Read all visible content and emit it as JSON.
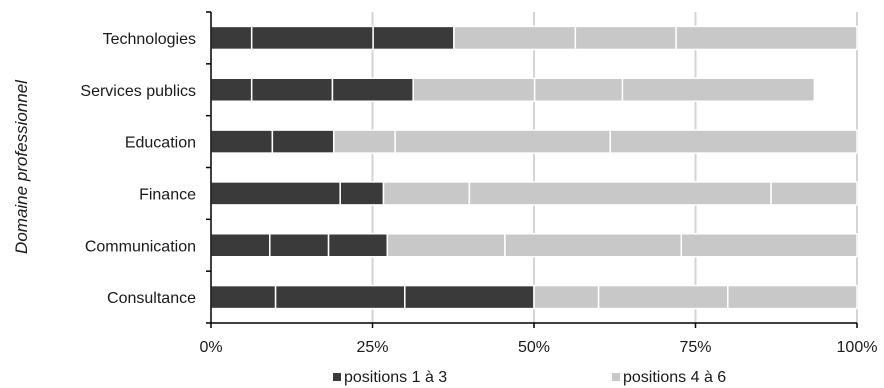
{
  "chart_data": {
    "type": "bar",
    "orientation": "horizontal",
    "stacked": true,
    "ylabel": "Domaine professionnel",
    "categories": [
      "Technologies",
      "Services publics",
      "Education",
      "Finance",
      "Communication",
      "Consultance"
    ],
    "xlim": [
      0,
      100
    ],
    "x_ticks": [
      "0%",
      "25%",
      "50%",
      "75%",
      "100%"
    ],
    "grid": true,
    "legend_position": "bottom",
    "segments": [
      {
        "group": "positions 1 à 3",
        "values": [
          6.3,
          6.3,
          9.5,
          20,
          9.1,
          10
        ]
      },
      {
        "group": "positions 1 à 3",
        "values": [
          18.8,
          12.5,
          9.5,
          6.7,
          9.1,
          20
        ]
      },
      {
        "group": "positions 1 à 3",
        "values": [
          12.5,
          12.5,
          0,
          0,
          9.1,
          20
        ]
      },
      {
        "group": "positions 4 à 6",
        "values": [
          18.8,
          18.8,
          9.5,
          13.3,
          18.2,
          10
        ]
      },
      {
        "group": "positions 4 à 6",
        "values": [
          15.6,
          13.6,
          33.3,
          46.7,
          27.3,
          20
        ]
      },
      {
        "group": "positions 4 à 6",
        "values": [
          28,
          29.7,
          38.2,
          13.3,
          27.2,
          20
        ]
      }
    ],
    "legend": [
      {
        "label": "positions 1 à 3",
        "color": "#3a3a3a"
      },
      {
        "label": "positions 4 à 6",
        "color": "#c8c8c8"
      }
    ]
  }
}
